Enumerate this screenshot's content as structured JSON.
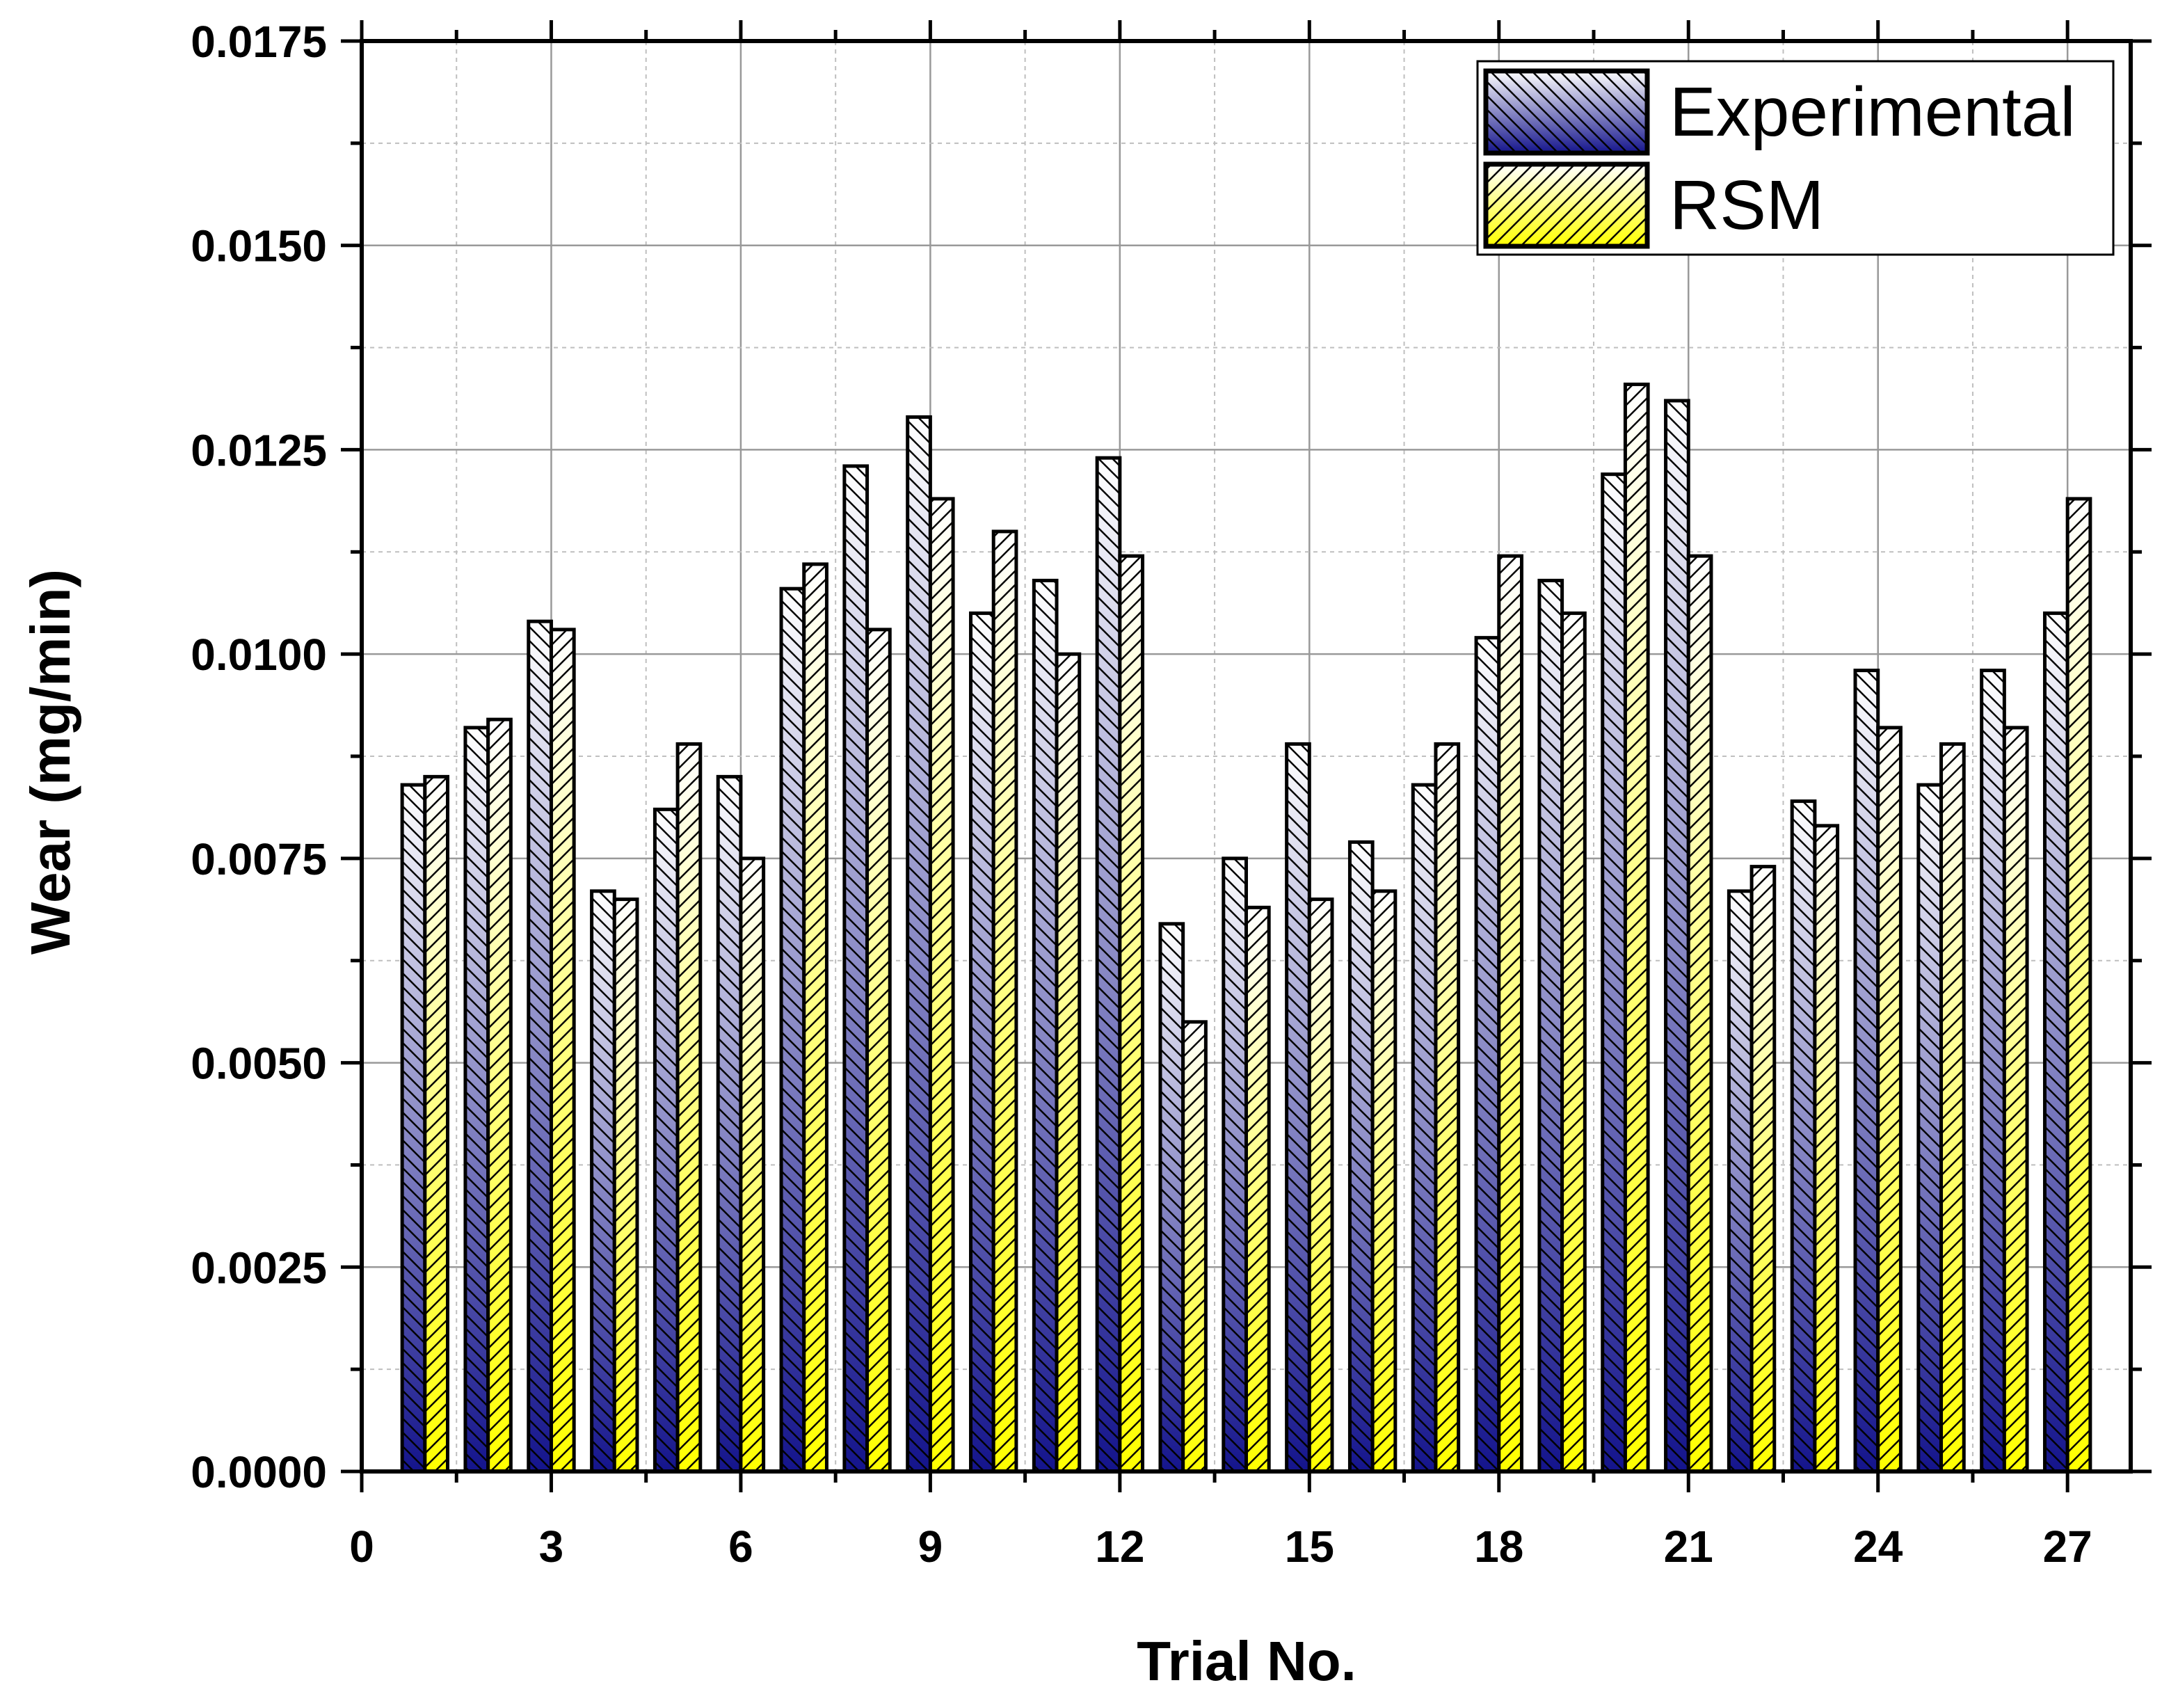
{
  "chart_data": {
    "type": "bar",
    "xlabel": "Trial No.",
    "ylabel": "Wear (mg/min)",
    "x": [
      1,
      2,
      3,
      4,
      5,
      6,
      7,
      8,
      9,
      10,
      11,
      12,
      13,
      14,
      15,
      16,
      17,
      18,
      19,
      20,
      21,
      22,
      23,
      24,
      25,
      26,
      27
    ],
    "xlim": [
      0,
      28
    ],
    "ylim": [
      0,
      0.0175
    ],
    "x_ticks": [
      "0",
      "3",
      "6",
      "9",
      "12",
      "15",
      "18",
      "21",
      "24",
      "27"
    ],
    "x_tick_values": [
      0,
      3,
      6,
      9,
      12,
      15,
      18,
      21,
      24,
      27
    ],
    "y_ticks": [
      "0.0000",
      "0.0025",
      "0.0050",
      "0.0075",
      "0.0100",
      "0.0125",
      "0.0150",
      "0.0175"
    ],
    "y_tick_values": [
      0,
      0.0025,
      0.005,
      0.0075,
      0.01,
      0.0125,
      0.015,
      0.0175
    ],
    "grid": true,
    "legend_position": "top-right",
    "series": [
      {
        "name": "Experimental",
        "colors": [
          "#14148c",
          "#ffffff"
        ],
        "values": [
          0.0084,
          0.0091,
          0.0104,
          0.0071,
          0.0081,
          0.0085,
          0.0108,
          0.0123,
          0.0129,
          0.0105,
          0.0109,
          0.0124,
          0.0067,
          0.0075,
          0.0089,
          0.0077,
          0.0084,
          0.0102,
          0.0109,
          0.0122,
          0.0131,
          0.0071,
          0.0082,
          0.0098,
          0.0084,
          0.0098,
          0.0105
        ]
      },
      {
        "name": "RSM",
        "colors": [
          "#ffff00",
          "#ffffff"
        ],
        "values": [
          0.0085,
          0.0092,
          0.0103,
          0.007,
          0.0089,
          0.0075,
          0.0111,
          0.0103,
          0.0119,
          0.0115,
          0.01,
          0.0112,
          0.0055,
          0.0069,
          0.007,
          0.0071,
          0.0089,
          0.0112,
          0.0105,
          0.0133,
          0.0112,
          0.0074,
          0.0079,
          0.0091,
          0.0089,
          0.0091,
          0.0119
        ]
      }
    ]
  }
}
